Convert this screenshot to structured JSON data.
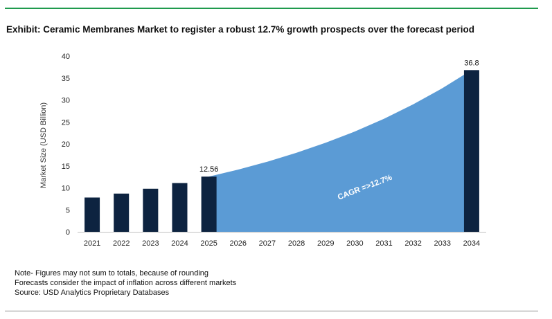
{
  "header": {
    "title": "Exhibit: Ceramic Membranes Market to register a robust 12.7% growth prospects over the forecast period"
  },
  "notes": [
    "Note- Figures may not sum to totals, because of rounding",
    "Forecasts consider the impact of inflation across different markets",
    "Source: USD Analytics Proprietary Databases"
  ],
  "chart_data": {
    "type": "bar",
    "categories": [
      "2021",
      "2022",
      "2023",
      "2024",
      "2025",
      "2026",
      "2027",
      "2028",
      "2029",
      "2030",
      "2031",
      "2032",
      "2033",
      "2034"
    ],
    "bars": [
      {
        "year": "2021",
        "value": 7.8
      },
      {
        "year": "2022",
        "value": 8.7
      },
      {
        "year": "2023",
        "value": 9.8
      },
      {
        "year": "2024",
        "value": 11.1
      },
      {
        "year": "2025",
        "value": 12.56,
        "label": "12.56"
      },
      {
        "year": "2034",
        "value": 36.8,
        "label": "36.8"
      }
    ],
    "forecast_area": {
      "x": [
        "2025",
        "2026",
        "2027",
        "2028",
        "2029",
        "2030",
        "2031",
        "2032",
        "2033",
        "2034"
      ],
      "values": [
        12.56,
        14.15,
        15.95,
        17.98,
        20.26,
        22.84,
        25.74,
        29.0,
        32.7,
        36.8
      ]
    },
    "annotation": "CAGR =>12.7%",
    "ylabel": "Market Size (USD Billion)",
    "xlabel": "",
    "ylim": [
      0,
      40
    ],
    "yticks": [
      0,
      5,
      10,
      15,
      20,
      25,
      30,
      35,
      40
    ],
    "grid": false,
    "colors": {
      "bar": "#0d2340",
      "area": "#5b9bd5",
      "annotation": "#ffffff"
    }
  }
}
